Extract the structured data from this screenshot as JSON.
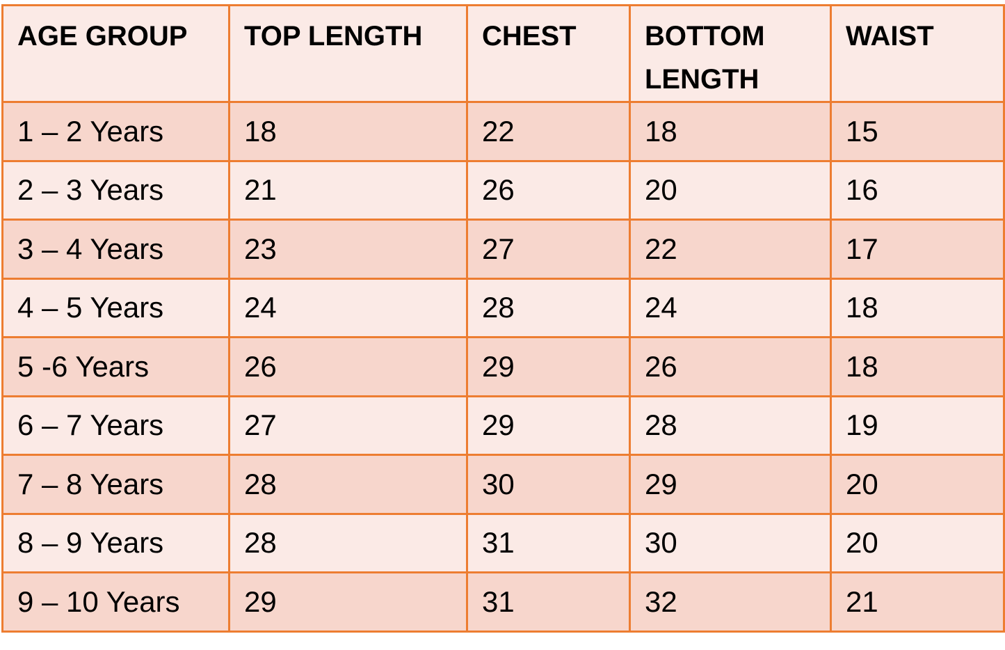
{
  "table": {
    "headers": [
      "AGE GROUP",
      "TOP LENGTH",
      "CHEST",
      "BOTTOM LENGTH",
      "WAIST"
    ],
    "rows": [
      [
        "1 – 2 Years",
        "18",
        "22",
        "18",
        "15"
      ],
      [
        "2 – 3 Years",
        "21",
        "26",
        "20",
        "16"
      ],
      [
        "3 – 4 Years",
        "23",
        "27",
        "22",
        "17"
      ],
      [
        "4 – 5 Years",
        "24",
        "28",
        "24",
        "18"
      ],
      [
        "5 -6 Years",
        "26",
        "29",
        "26",
        "18"
      ],
      [
        "6 – 7 Years",
        "27",
        "29",
        "28",
        "19"
      ],
      [
        "7 – 8 Years",
        "28",
        "30",
        "29",
        "20"
      ],
      [
        "8 – 9 Years",
        "28",
        "31",
        "30",
        "20"
      ],
      [
        "9 – 10 Years",
        "29",
        "31",
        "32",
        "21"
      ]
    ],
    "colors": {
      "border": "#ED7D31",
      "row_dark": "#F7D6CC",
      "row_light": "#FBEAE6"
    }
  }
}
